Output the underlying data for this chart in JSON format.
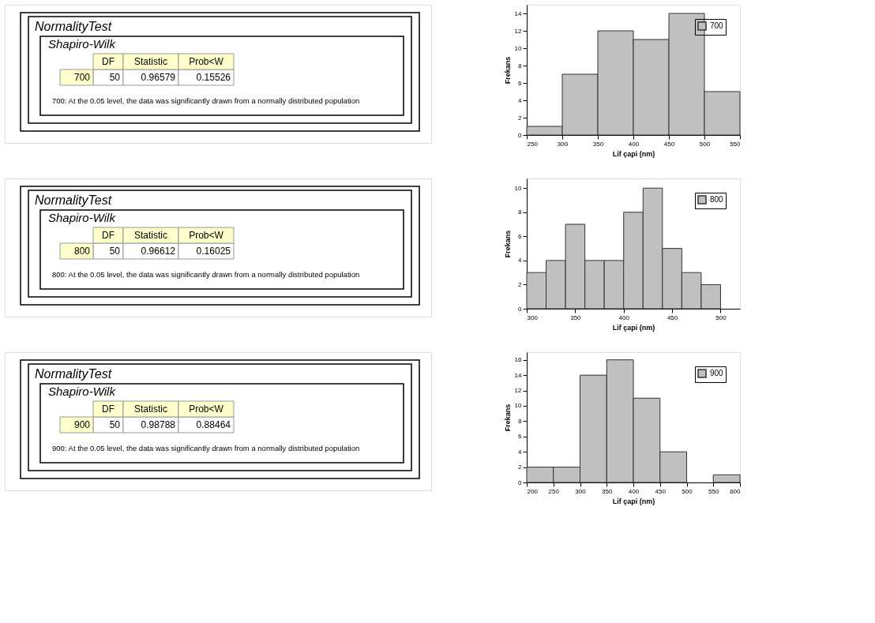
{
  "chart_data": [
    {
      "type": "other",
      "title": "NormalityTest",
      "subtitle": "Shapiro-Wilk",
      "annotations": [
        "DF",
        "Statistic",
        "Prob<W",
        "700",
        "50",
        "0.96579",
        "0.15526",
        "700: At the 0.05 level, the data was significantly drawn from a normally distributed population"
      ]
    },
    {
      "type": "histogram",
      "bins": [
        250,
        300,
        350,
        400,
        450,
        500,
        550
      ],
      "series": [
        {
          "name": "700",
          "color": "#c0c0c0",
          "values": [
            1,
            7,
            12,
            11,
            14,
            5
          ]
        }
      ],
      "xlabel": "Lif çapi (nm)",
      "ylabel": "Frekans",
      "xlim": [
        250,
        550
      ],
      "xticks": [
        250,
        300,
        350,
        400,
        450,
        500,
        550
      ],
      "ylim": [
        0,
        15
      ],
      "yticks": [
        0,
        2,
        4,
        6,
        8,
        10,
        12,
        14
      ],
      "legend": "top right",
      "grid": false
    },
    {
      "type": "other",
      "title": "NormalityTest",
      "subtitle": "Shapiro-Wilk",
      "annotations": [
        "DF",
        "Statistic",
        "Prob<W",
        "800",
        "50",
        "0.96612",
        "0.16025",
        "800: At the 0.05 level, the data was significantly drawn from a normally distributed population"
      ]
    },
    {
      "type": "histogram",
      "bins": [
        300,
        320,
        340,
        360,
        380,
        400,
        420,
        440,
        460,
        480,
        500
      ],
      "series": [
        {
          "name": "800",
          "color": "#c0c0c0",
          "values": [
            3,
            4,
            7,
            4,
            4,
            8,
            10,
            5,
            3,
            2
          ]
        }
      ],
      "xlabel": "Lif çapi (nm)",
      "ylabel": "Frekans",
      "xlim": [
        300,
        520
      ],
      "xticks": [
        300,
        350,
        400,
        450,
        500
      ],
      "ylim": [
        0,
        10.8
      ],
      "yticks": [
        0,
        2,
        4,
        6,
        8,
        10
      ],
      "legend": "top right",
      "grid": false
    },
    {
      "type": "other",
      "title": "NormalityTest",
      "subtitle": "Shapiro-Wilk",
      "annotations": [
        "DF",
        "Statistic",
        "Prob<W",
        "900",
        "50",
        "0.98788",
        "0.88464",
        "900: At the 0.05 level, the data was significantly drawn from a normally distributed population"
      ]
    },
    {
      "type": "histogram",
      "bins": [
        200,
        250,
        300,
        350,
        400,
        450,
        500,
        550,
        600
      ],
      "series": [
        {
          "name": "900",
          "color": "#c0c0c0",
          "values": [
            2,
            2,
            14,
            16,
            11,
            4,
            0,
            1
          ]
        }
      ],
      "xlabel": "Lif çapi (nm)",
      "ylabel": "Frekans",
      "xlim": [
        200,
        600
      ],
      "xticks": [
        200,
        250,
        300,
        350,
        400,
        450,
        500,
        550,
        600
      ],
      "ylim": [
        0,
        17
      ],
      "yticks": [
        0,
        2,
        4,
        6,
        8,
        10,
        12,
        14,
        16
      ],
      "legend": "top right",
      "grid": false
    }
  ]
}
